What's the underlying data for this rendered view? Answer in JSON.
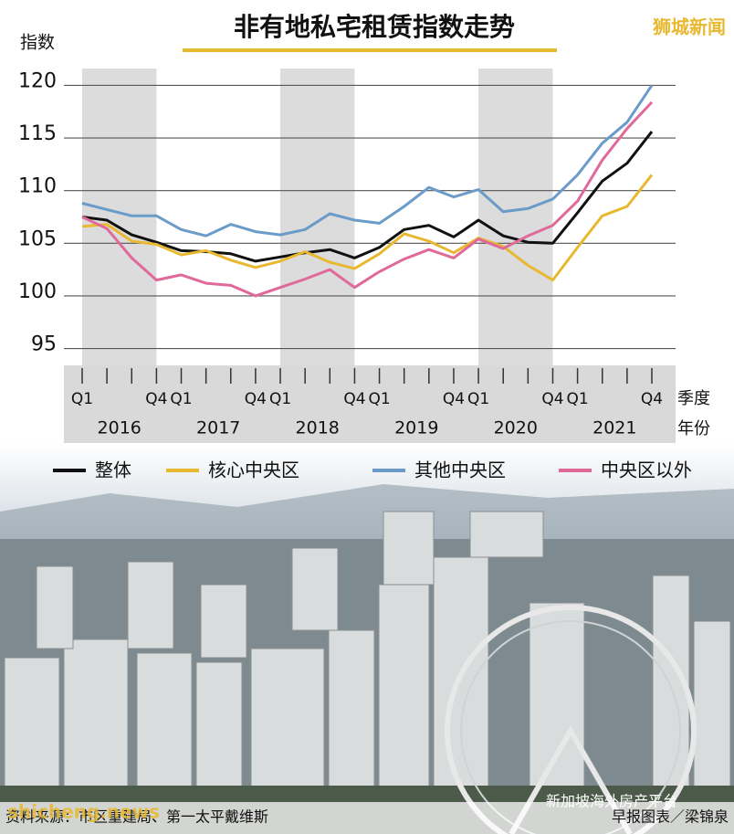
{
  "chart_data": {
    "type": "line",
    "title": "非有地私宅租赁指数走势",
    "y_label": "指数",
    "x_label": "季度",
    "year_label": "年份",
    "categories": [
      "Q1",
      null,
      null,
      "Q4",
      "Q1",
      null,
      null,
      "Q4",
      "Q1",
      null,
      null,
      "Q4",
      "Q1",
      null,
      null,
      "Q4",
      "Q1",
      null,
      null,
      "Q4",
      "Q1",
      null,
      null,
      "Q4"
    ],
    "years": [
      "2016",
      "2017",
      "2018",
      "2019",
      "2020",
      "2021"
    ],
    "ylim": [
      93.4,
      121.6
    ],
    "yticks": [
      95,
      100,
      105,
      110,
      115,
      120
    ],
    "grid": true,
    "series": [
      {
        "name": "整体",
        "color": "#111111",
        "values": [
          107.5,
          107.2,
          105.8,
          105.1,
          104.3,
          104.2,
          104.0,
          103.3,
          103.7,
          104.1,
          104.4,
          103.6,
          104.6,
          106.3,
          106.7,
          105.6,
          107.2,
          105.7,
          105.1,
          105.0,
          107.9,
          110.9,
          112.6,
          115.6
        ]
      },
      {
        "name": "核心中央区",
        "color": "#e8b830",
        "values": [
          106.6,
          106.8,
          105.2,
          104.9,
          103.9,
          104.3,
          103.4,
          102.7,
          103.3,
          104.2,
          103.2,
          102.6,
          104.0,
          105.9,
          105.2,
          104.1,
          105.5,
          104.7,
          102.9,
          101.5,
          104.6,
          107.6,
          108.5,
          111.5
        ]
      },
      {
        "name": "其他中央区",
        "color": "#6a9bc9",
        "values": [
          108.8,
          108.2,
          107.6,
          107.6,
          106.3,
          105.7,
          106.8,
          106.1,
          105.8,
          106.3,
          107.8,
          107.2,
          106.9,
          108.5,
          110.3,
          109.4,
          110.1,
          108.0,
          108.3,
          109.2,
          111.5,
          114.5,
          116.5,
          120.0
        ]
      },
      {
        "name": "中央区以外",
        "color": "#e0699a",
        "values": [
          107.5,
          106.4,
          103.6,
          101.5,
          102.0,
          101.2,
          101.0,
          100.0,
          100.8,
          101.6,
          102.5,
          100.8,
          102.3,
          103.5,
          104.4,
          103.6,
          105.4,
          104.5,
          105.7,
          106.7,
          109.0,
          112.9,
          115.9,
          118.4
        ]
      }
    ]
  },
  "page": {
    "watermark": "狮城新闻",
    "source": "资料来源：市区重建局、第一太平戴维斯",
    "credit": "早报图表／梁锦泉",
    "site_watermark": "shicheng.news",
    "platform_watermark": "新加坡海外房产平台"
  }
}
